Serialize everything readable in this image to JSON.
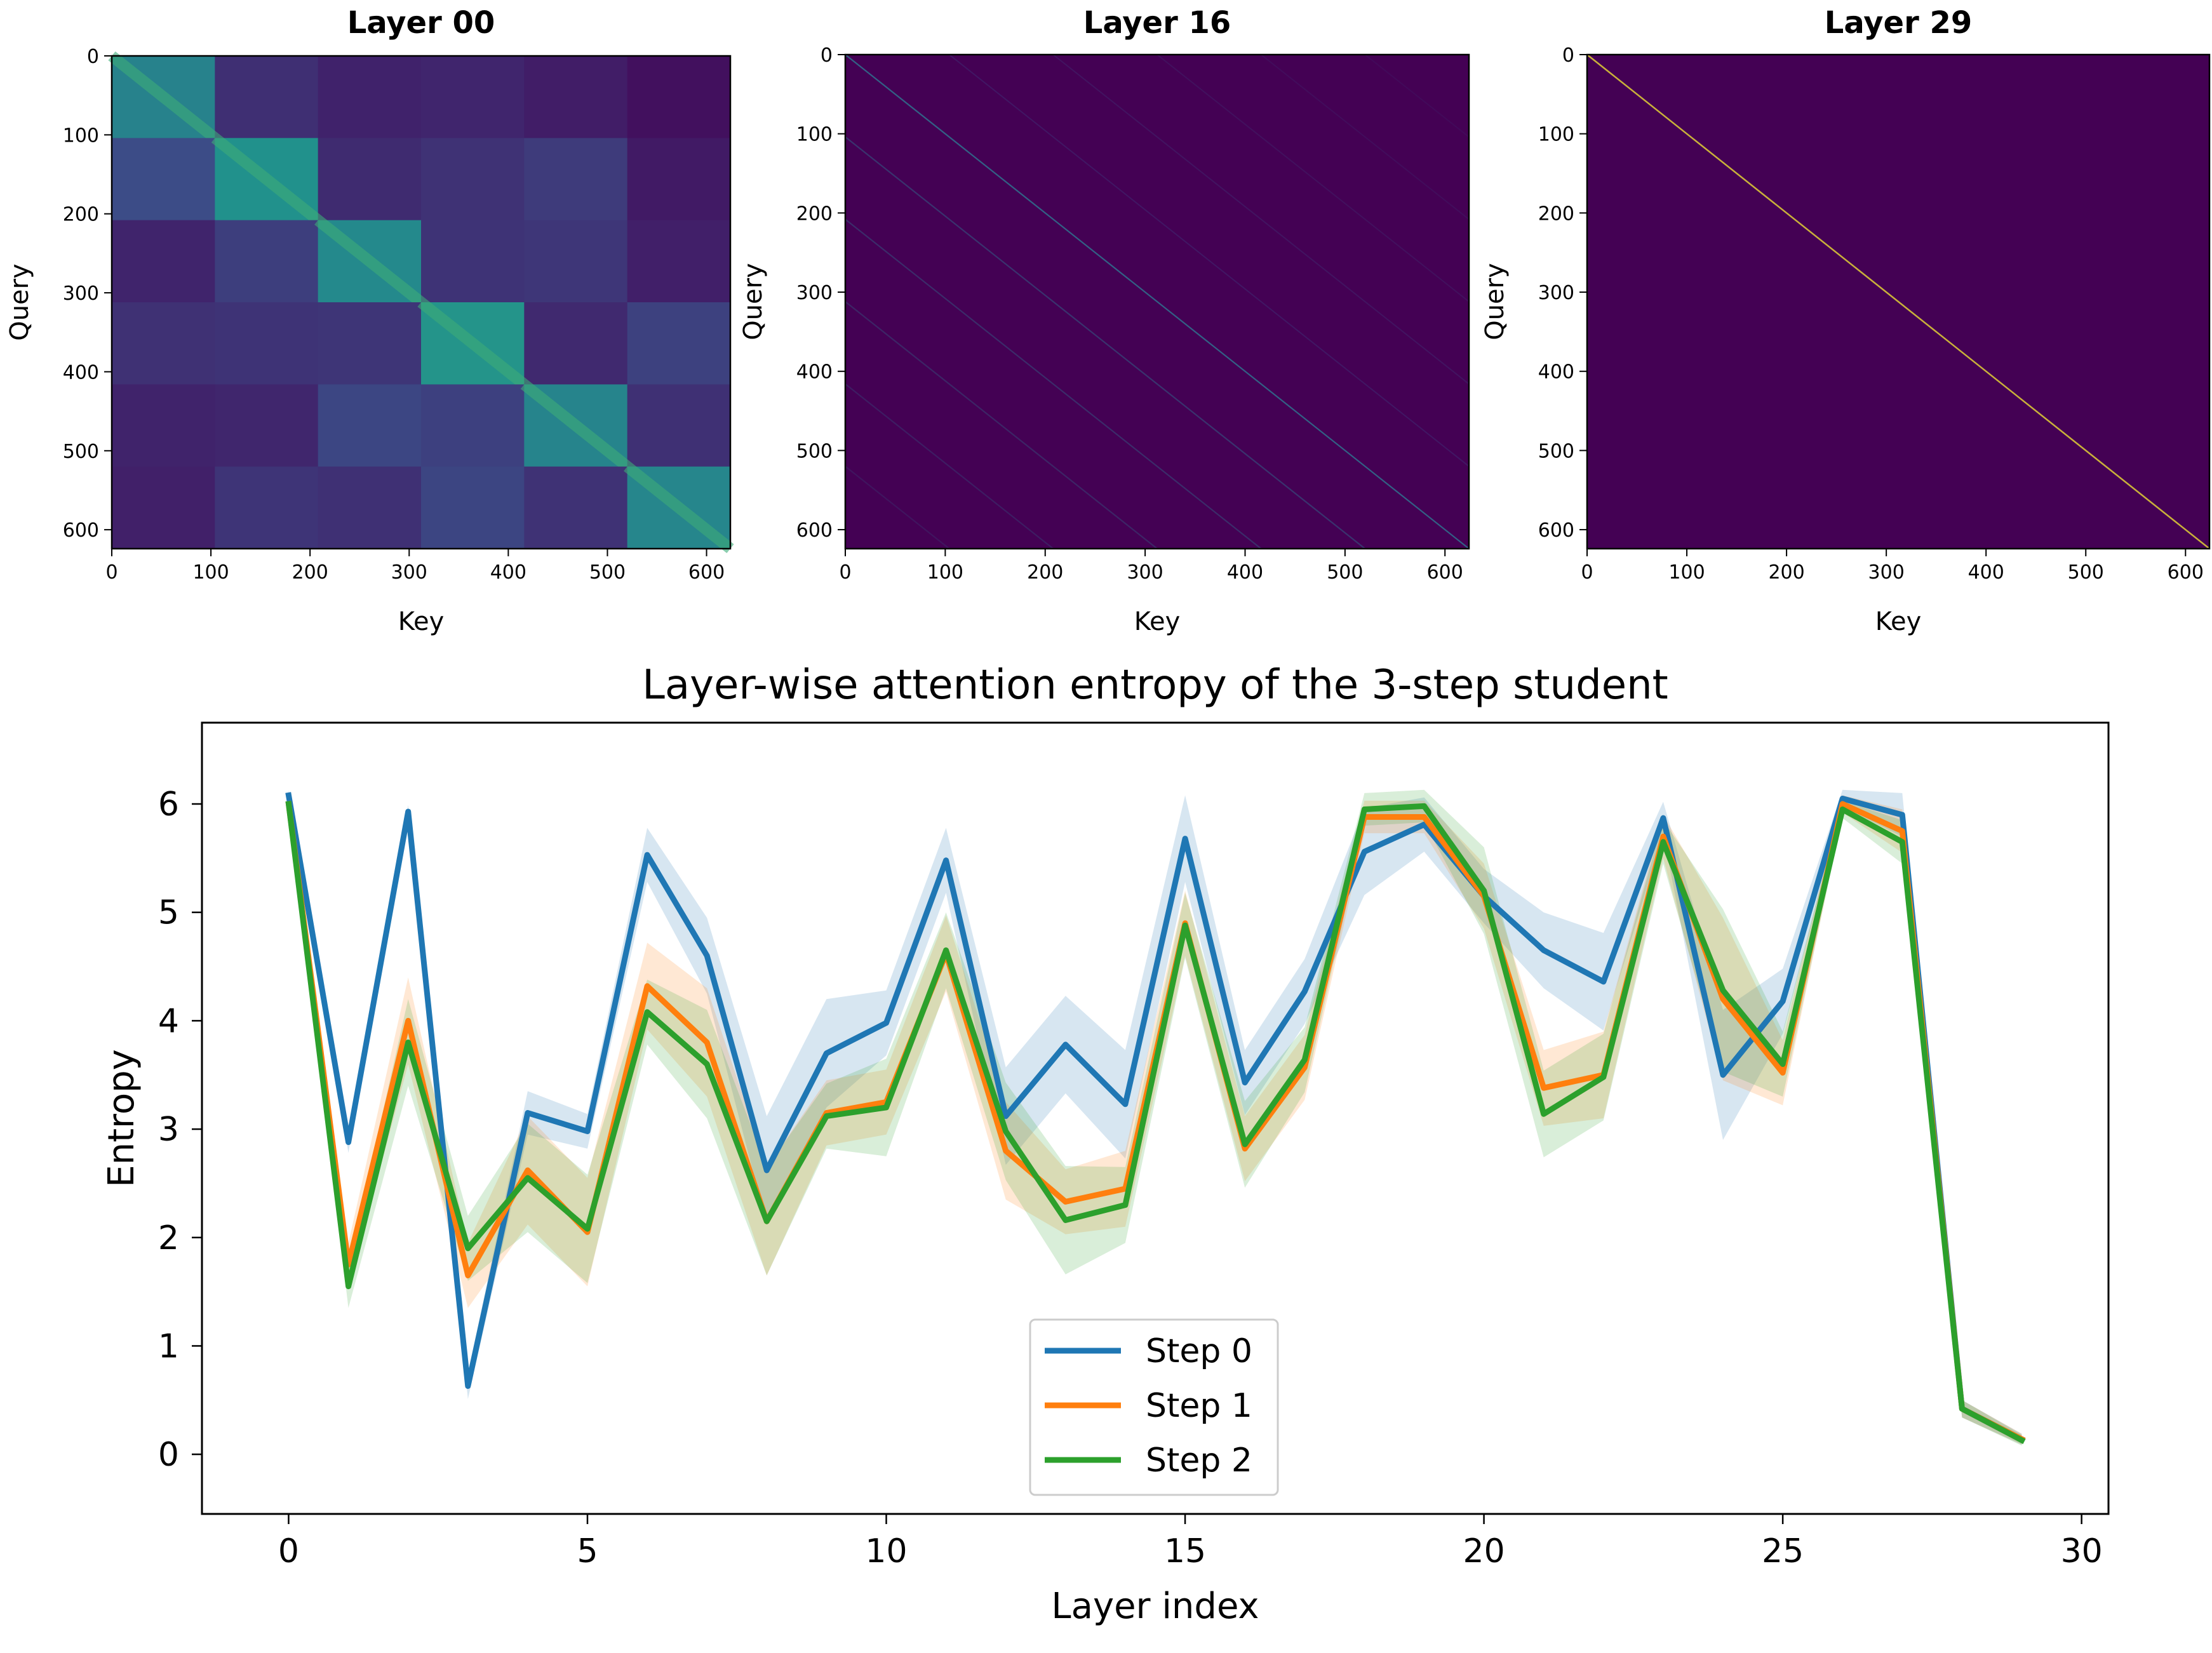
{
  "chart_data": [
    {
      "type": "heatmap",
      "title": "Layer 00",
      "xlabel": "Key",
      "ylabel": "Query",
      "pattern": "block-diagonal",
      "xlim": [
        0,
        624
      ],
      "ylim": [
        624,
        0
      ],
      "x_ticks": [
        "0",
        "100",
        "200",
        "300",
        "400",
        "500",
        "600"
      ],
      "y_ticks": [
        "0",
        "100",
        "200",
        "300",
        "400",
        "500",
        "600"
      ]
    },
    {
      "type": "heatmap",
      "title": "Layer 16",
      "xlabel": "Key",
      "ylabel": "Query",
      "pattern": "sparse-diagonals",
      "xlim": [
        0,
        624
      ],
      "ylim": [
        624,
        0
      ],
      "x_ticks": [
        "0",
        "100",
        "200",
        "300",
        "400",
        "500",
        "600"
      ],
      "y_ticks": [
        "0",
        "100",
        "200",
        "300",
        "400",
        "500",
        "600"
      ]
    },
    {
      "type": "heatmap",
      "title": "Layer 29",
      "xlabel": "Key",
      "ylabel": "Query",
      "pattern": "main-diagonal",
      "xlim": [
        0,
        624
      ],
      "ylim": [
        624,
        0
      ],
      "x_ticks": [
        "0",
        "100",
        "200",
        "300",
        "400",
        "500",
        "600"
      ],
      "y_ticks": [
        "0",
        "100",
        "200",
        "300",
        "400",
        "500",
        "600"
      ]
    },
    {
      "type": "line",
      "title": "Layer-wise attention entropy of the 3-step student",
      "xlabel": "Layer index",
      "ylabel": "Entropy",
      "xlim": [
        -1.45,
        30.45
      ],
      "ylim": [
        -0.55,
        6.75
      ],
      "x_ticks": [
        "0",
        "5",
        "10",
        "15",
        "20",
        "25",
        "30"
      ],
      "y_ticks": [
        "0",
        "1",
        "2",
        "3",
        "4",
        "5",
        "6"
      ],
      "x": [
        0,
        1,
        2,
        3,
        4,
        5,
        6,
        7,
        8,
        9,
        10,
        11,
        12,
        13,
        14,
        15,
        16,
        17,
        18,
        19,
        20,
        21,
        22,
        23,
        24,
        25,
        26,
        27,
        28,
        29
      ],
      "legend_position": "bottom-center",
      "series": [
        {
          "name": "Step 0",
          "color": "#1f77b4",
          "values": [
            6.08,
            2.88,
            5.93,
            0.63,
            3.15,
            2.98,
            5.53,
            4.6,
            2.62,
            3.7,
            3.98,
            5.48,
            3.12,
            3.78,
            3.23,
            5.68,
            3.43,
            4.27,
            5.56,
            5.81,
            5.15,
            4.65,
            4.36,
            5.87,
            3.5,
            4.18,
            6.05,
            5.9,
            0.42,
            0.14
          ],
          "band_half_width": [
            0.05,
            0.1,
            0.06,
            0.12,
            0.2,
            0.16,
            0.25,
            0.35,
            0.5,
            0.5,
            0.3,
            0.3,
            0.45,
            0.45,
            0.5,
            0.4,
            0.3,
            0.3,
            0.4,
            0.25,
            0.25,
            0.35,
            0.45,
            0.15,
            0.6,
            0.3,
            0.08,
            0.2,
            0.08,
            0.05
          ]
        },
        {
          "name": "Step 1",
          "color": "#ff7f0e",
          "values": [
            6.0,
            1.75,
            4.0,
            1.65,
            2.62,
            2.05,
            4.32,
            3.8,
            2.15,
            3.15,
            3.25,
            4.62,
            2.8,
            2.33,
            2.45,
            4.9,
            2.82,
            3.57,
            5.88,
            5.88,
            5.15,
            3.38,
            3.5,
            5.7,
            4.2,
            3.52,
            6.0,
            5.75,
            0.42,
            0.14
          ],
          "band_half_width": [
            0.05,
            0.2,
            0.4,
            0.3,
            0.5,
            0.5,
            0.4,
            0.5,
            0.5,
            0.3,
            0.3,
            0.35,
            0.45,
            0.3,
            0.35,
            0.3,
            0.3,
            0.3,
            0.15,
            0.15,
            0.3,
            0.35,
            0.4,
            0.2,
            0.75,
            0.3,
            0.08,
            0.2,
            0.08,
            0.05
          ]
        },
        {
          "name": "Step 2",
          "color": "#2ca02c",
          "values": [
            6.0,
            1.55,
            3.8,
            1.9,
            2.55,
            2.08,
            4.08,
            3.6,
            2.15,
            3.12,
            3.2,
            4.65,
            2.98,
            2.16,
            2.3,
            4.88,
            2.86,
            3.64,
            5.95,
            5.98,
            5.2,
            3.14,
            3.48,
            5.65,
            4.28,
            3.6,
            5.95,
            5.65,
            0.42,
            0.13
          ],
          "band_half_width": [
            0.05,
            0.2,
            0.4,
            0.3,
            0.5,
            0.5,
            0.3,
            0.5,
            0.5,
            0.3,
            0.45,
            0.35,
            0.45,
            0.5,
            0.35,
            0.3,
            0.4,
            0.3,
            0.15,
            0.15,
            0.4,
            0.4,
            0.4,
            0.2,
            0.75,
            0.3,
            0.08,
            0.2,
            0.08,
            0.05
          ]
        }
      ]
    }
  ]
}
